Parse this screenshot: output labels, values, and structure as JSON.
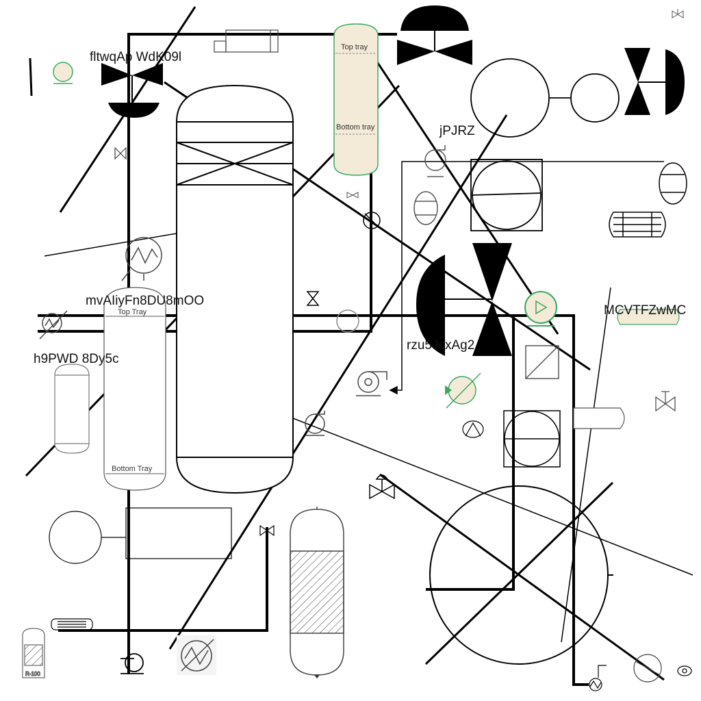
{
  "diagram": {
    "labels": {
      "tag1": "fltwqAp WdK09l",
      "tag2": "jPJRZ",
      "tag3": "mvAIiyFn8DU8mOO",
      "tag4": "h9PWD 8Dy5c",
      "tag5": "rzu5JcxAg2",
      "tag6": "MCVTFZwMC"
    },
    "equipment_text": {
      "top_tray_small": "Top tray",
      "bottom_tray_small": "Bottom tray",
      "top_tray_left": "Top Tray",
      "bottom_tray_left": "Bottom Tray",
      "reactor_tag": "R-100"
    },
    "colors": {
      "line": "#000000",
      "green": "#3aa860",
      "fill_beige": "#f3ead8"
    }
  }
}
